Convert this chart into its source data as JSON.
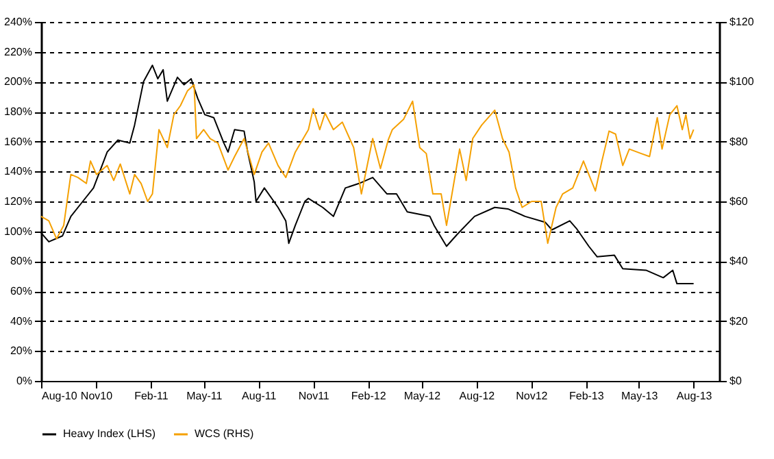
{
  "chart_data": {
    "type": "line",
    "legend": "bottom",
    "grid": "y",
    "line_style": "solid",
    "marker": "none",
    "xlim": [
      "2010-08-01",
      "2013-09-13"
    ],
    "xticks": [
      {
        "value": "2010-08-01",
        "label": "Aug-10"
      },
      {
        "value": "2010-11-01",
        "label": "Nov10"
      },
      {
        "value": "2011-02-01",
        "label": "Feb-11"
      },
      {
        "value": "2011-05-01",
        "label": "May-11"
      },
      {
        "value": "2011-08-01",
        "label": "Aug-11"
      },
      {
        "value": "2011-11-01",
        "label": "Nov11"
      },
      {
        "value": "2012-02-01",
        "label": "Feb-12"
      },
      {
        "value": "2012-05-01",
        "label": "May-12"
      },
      {
        "value": "2012-08-01",
        "label": "Aug-12"
      },
      {
        "value": "2012-11-01",
        "label": "Nov12"
      },
      {
        "value": "2013-02-01",
        "label": "Feb-13"
      },
      {
        "value": "2013-05-01",
        "label": "May-13"
      },
      {
        "value": "2013-08-01",
        "label": "Aug-13"
      }
    ],
    "ylim": [
      0,
      240
    ],
    "yticks": [
      {
        "value": 0,
        "label": "0%"
      },
      {
        "value": 20,
        "label": "20%"
      },
      {
        "value": 40,
        "label": "40%"
      },
      {
        "value": 60,
        "label": "60%"
      },
      {
        "value": 80,
        "label": "80%"
      },
      {
        "value": 100,
        "label": "100%"
      },
      {
        "value": 120,
        "label": "120%"
      },
      {
        "value": 140,
        "label": "140%"
      },
      {
        "value": 160,
        "label": "160%"
      },
      {
        "value": 180,
        "label": "180%"
      },
      {
        "value": 200,
        "label": "200%"
      },
      {
        "value": 220,
        "label": "220%"
      },
      {
        "value": 240,
        "label": "240%"
      }
    ],
    "y2lim": [
      0,
      120
    ],
    "y2ticks": [
      {
        "value": 0,
        "label": "$0"
      },
      {
        "value": 20,
        "label": "$20"
      },
      {
        "value": 40,
        "label": "$40"
      },
      {
        "value": 60,
        "label": "$60"
      },
      {
        "value": 80,
        "label": "$80"
      },
      {
        "value": 100,
        "label": "$100"
      },
      {
        "value": 120,
        "label": "$120"
      }
    ],
    "series": [
      {
        "name": "Heavy Index (LHS)",
        "color": "#000000",
        "x": [
          "2010-08-01",
          "2010-08-14",
          "2010-09-06",
          "2010-09-20",
          "2010-10-10",
          "2010-10-28",
          "2010-11-20",
          "2010-12-08",
          "2010-12-28",
          "2011-01-05",
          "2011-01-20",
          "2011-02-04",
          "2011-02-13",
          "2011-02-22",
          "2011-03-01",
          "2011-03-18",
          "2011-03-29",
          "2011-04-10",
          "2011-04-21",
          "2011-05-03",
          "2011-05-18",
          "2011-06-04",
          "2011-06-11",
          "2011-06-22",
          "2011-07-08",
          "2011-07-14",
          "2011-07-25",
          "2011-07-28",
          "2011-08-11",
          "2011-09-03",
          "2011-09-16",
          "2011-09-21",
          "2011-10-02",
          "2011-10-18",
          "2011-10-24",
          "2011-11-17",
          "2011-12-05",
          "2011-12-25",
          "2012-01-17",
          "2012-02-09",
          "2012-03-04",
          "2012-03-20",
          "2012-04-07",
          "2012-05-15",
          "2012-05-22",
          "2012-06-12",
          "2012-06-30",
          "2012-07-29",
          "2012-09-01",
          "2012-09-23",
          "2012-10-22",
          "2012-11-25",
          "2012-12-06",
          "2013-01-05",
          "2013-01-16",
          "2013-02-06",
          "2013-02-20",
          "2013-03-21",
          "2013-04-04",
          "2013-05-13",
          "2013-06-11",
          "2013-06-27",
          "2013-07-04",
          "2013-08-01"
        ],
        "values": [
          99,
          93,
          97,
          110,
          120,
          129,
          153,
          161,
          159,
          171,
          200,
          211,
          202,
          208,
          187,
          203,
          198,
          202,
          189,
          178,
          176,
          159,
          153,
          168,
          167,
          153,
          133,
          120,
          129,
          116,
          107,
          92,
          104,
          120,
          122,
          116,
          110,
          129,
          132,
          136,
          125,
          125,
          113,
          110,
          104,
          90,
          98,
          110,
          116,
          115,
          110,
          106,
          101,
          107,
          102,
          90,
          83,
          84,
          75,
          74,
          69,
          74,
          65,
          65
        ]
      },
      {
        "name": "WCS (RHS)",
        "color": "#f5a000",
        "axis": "y2",
        "x": [
          "2010-08-01",
          "2010-08-14",
          "2010-08-27",
          "2010-09-08",
          "2010-09-20",
          "2010-10-02",
          "2010-10-16",
          "2010-10-23",
          "2010-11-02",
          "2010-11-20",
          "2010-12-01",
          "2010-12-12",
          "2010-12-28",
          "2011-01-05",
          "2011-01-16",
          "2011-01-27",
          "2011-02-04",
          "2011-02-15",
          "2011-03-01",
          "2011-03-12",
          "2011-03-23",
          "2011-04-04",
          "2011-04-15",
          "2011-04-19",
          "2011-05-01",
          "2011-05-12",
          "2011-05-25",
          "2011-06-11",
          "2011-06-22",
          "2011-07-08",
          "2011-07-25",
          "2011-08-07",
          "2011-08-18",
          "2011-09-03",
          "2011-09-16",
          "2011-10-02",
          "2011-10-24",
          "2011-11-01",
          "2011-11-12",
          "2011-11-21",
          "2011-12-05",
          "2011-12-20",
          "2012-01-08",
          "2012-01-21",
          "2012-02-09",
          "2012-02-22",
          "2012-03-06",
          "2012-03-13",
          "2012-04-01",
          "2012-04-16",
          "2012-04-28",
          "2012-05-09",
          "2012-05-20",
          "2012-06-03",
          "2012-06-12",
          "2012-06-19",
          "2012-07-04",
          "2012-07-15",
          "2012-07-26",
          "2012-08-10",
          "2012-09-01",
          "2012-09-14",
          "2012-09-25",
          "2012-10-06",
          "2012-10-17",
          "2012-11-02",
          "2012-11-18",
          "2012-11-29",
          "2012-12-13",
          "2012-12-24",
          "2013-01-10",
          "2013-01-28",
          "2013-02-17",
          "2013-02-28",
          "2013-03-12",
          "2013-03-23",
          "2013-04-04",
          "2013-04-15",
          "2013-05-05",
          "2013-05-19",
          "2013-06-01",
          "2013-06-09",
          "2013-06-22",
          "2013-07-04",
          "2013-07-13",
          "2013-07-19",
          "2013-07-26",
          "2013-08-01"
        ],
        "values": [
          55,
          53.5,
          47.5,
          52,
          69,
          68,
          66,
          73.5,
          69,
          72,
          67,
          72.5,
          62.5,
          69,
          66,
          60,
          62.5,
          84,
          78,
          89,
          92,
          97,
          99,
          81,
          84,
          81,
          79.5,
          70.5,
          75,
          81,
          69,
          76.5,
          79.5,
          72,
          68,
          76.5,
          84,
          91,
          84,
          89.5,
          84,
          86.5,
          78,
          62.5,
          81,
          71,
          80.5,
          84,
          87.5,
          93.5,
          78,
          76,
          62.5,
          62.5,
          52,
          60,
          77.5,
          67,
          81,
          85.5,
          90.5,
          81,
          76.5,
          64.5,
          58,
          60,
          60,
          46,
          58,
          62.5,
          64.5,
          73.5,
          63.5,
          73.5,
          83.5,
          82.5,
          72,
          77.5,
          76,
          75,
          88,
          77.5,
          89,
          92,
          84,
          89,
          81,
          84
        ]
      }
    ]
  }
}
